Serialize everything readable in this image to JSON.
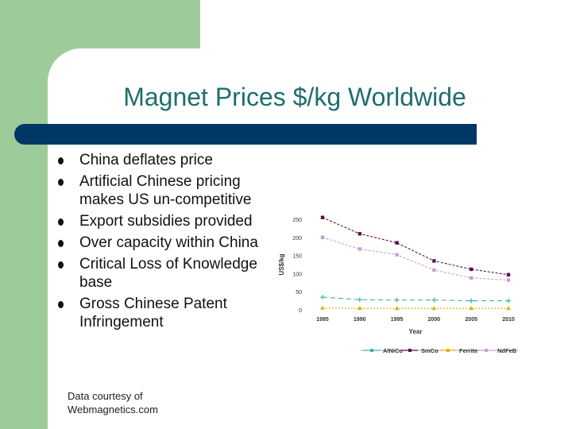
{
  "title": "Magnet Prices $/kg Worldwide",
  "bullets": [
    "China deflates price",
    "Artificial Chinese pricing makes US un-competitive",
    "Export subsidies provided",
    "Over capacity within China",
    "Critical Loss of Knowledge base",
    "Gross Chinese Patent Infringement"
  ],
  "credit": {
    "line1": "Data courtesy of",
    "line2": "Webmagnetics.com"
  },
  "colors": {
    "green": "#9dcc9a",
    "bar": "#003865",
    "title": "#1f6e6e"
  },
  "chart_data": {
    "type": "line",
    "title": "",
    "xlabel": "Year",
    "ylabel": "US$/kg",
    "x": [
      1985,
      1990,
      1995,
      2000,
      2005,
      2010
    ],
    "ylim": [
      0,
      250
    ],
    "yticks": [
      0,
      50,
      100,
      150,
      200,
      250
    ],
    "series": [
      {
        "name": "AlNiCo",
        "color": "#3fb0b0",
        "marker": "plus",
        "values": [
          35,
          28,
          27,
          27,
          25,
          25
        ]
      },
      {
        "name": "SmCo",
        "color": "#5a1048",
        "marker": "square",
        "values": [
          255,
          210,
          185,
          135,
          112,
          97
        ]
      },
      {
        "name": "Ferrite",
        "color": "#e0b000",
        "marker": "triangle",
        "values": [
          5,
          4,
          4,
          4,
          4,
          4
        ]
      },
      {
        "name": "NdFeB",
        "color": "#c79fd0",
        "marker": "square",
        "values": [
          200,
          168,
          152,
          110,
          88,
          82
        ]
      }
    ],
    "legend": "bottom"
  }
}
